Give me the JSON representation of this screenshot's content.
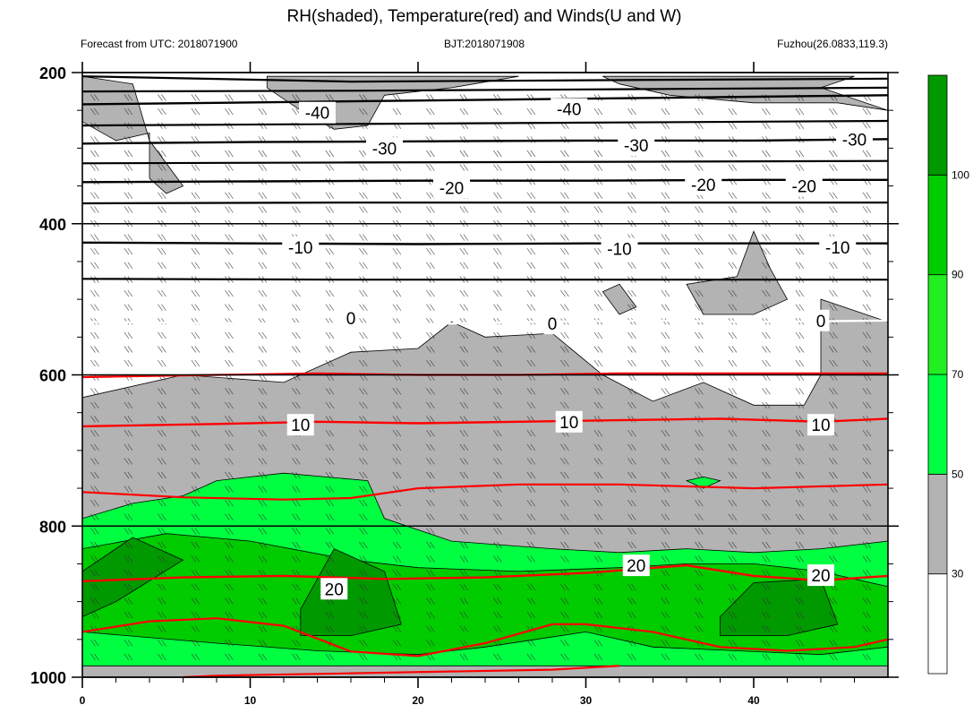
{
  "chart_data": {
    "type": "heatmap",
    "title": "RH(shaded), Temperature(red) and Winds(U and W)",
    "subtitle_left": "Forecast from UTC: 2018071900",
    "subtitle_center": "BJT:2018071908",
    "subtitle_right": "Fuzhou(26.0833,119.3)",
    "xlabel": "",
    "ylabel": "",
    "xlim": [
      0,
      48
    ],
    "ylim": [
      1000,
      200
    ],
    "x_ticks": [
      0,
      10,
      20,
      30,
      40
    ],
    "y_ticks": [
      200,
      400,
      600,
      800,
      1000
    ],
    "colorbar": {
      "levels": [
        30,
        50,
        70,
        90,
        100
      ],
      "colors": [
        "#ffffff",
        "#b3b3b3",
        "#00ff40",
        "#22ee22",
        "#00cc00",
        "#009900"
      ]
    },
    "rh_regions": [
      {
        "level": 50,
        "color": "#b3b3b3",
        "points": [
          [
            0,
            630
          ],
          [
            6,
            600
          ],
          [
            12,
            610
          ],
          [
            16,
            570
          ],
          [
            20,
            565
          ],
          [
            22,
            530
          ],
          [
            24,
            550
          ],
          [
            28,
            545
          ],
          [
            31,
            600
          ],
          [
            34,
            635
          ],
          [
            37,
            610
          ],
          [
            40,
            640
          ],
          [
            43,
            640
          ],
          [
            44,
            600
          ],
          [
            44,
            500
          ],
          [
            48,
            530
          ],
          [
            48,
            1000
          ],
          [
            0,
            1000
          ]
        ]
      },
      {
        "level": 50,
        "color": "#b3b3b3",
        "points": [
          [
            0,
            205
          ],
          [
            3,
            215
          ],
          [
            4,
            290
          ],
          [
            6,
            350
          ],
          [
            5,
            360
          ],
          [
            4,
            340
          ],
          [
            4,
            280
          ],
          [
            2,
            290
          ],
          [
            0,
            265
          ]
        ]
      },
      {
        "level": 50,
        "color": "#b3b3b3",
        "points": [
          [
            11,
            205
          ],
          [
            26,
            205
          ],
          [
            22,
            220
          ],
          [
            18,
            230
          ],
          [
            17,
            270
          ],
          [
            15,
            275
          ],
          [
            13,
            250
          ],
          [
            11,
            220
          ]
        ]
      },
      {
        "level": 50,
        "color": "#b3b3b3",
        "points": [
          [
            31,
            205
          ],
          [
            46,
            205
          ],
          [
            44,
            220
          ],
          [
            48,
            250
          ],
          [
            45,
            240
          ],
          [
            40,
            240
          ],
          [
            35,
            230
          ],
          [
            32,
            215
          ]
        ]
      },
      {
        "level": 50,
        "color": "#b3b3b3",
        "points": [
          [
            37,
            520
          ],
          [
            36,
            480
          ],
          [
            39,
            470
          ],
          [
            40,
            410
          ],
          [
            41,
            460
          ],
          [
            42,
            500
          ],
          [
            40,
            520
          ]
        ]
      },
      {
        "level": 50,
        "color": "#b3b3b3",
        "points": [
          [
            31,
            490
          ],
          [
            32,
            480
          ],
          [
            33,
            510
          ],
          [
            32,
            520
          ]
        ]
      },
      {
        "level": 70,
        "color": "#00ff40",
        "points": [
          [
            0,
            790
          ],
          [
            3,
            770
          ],
          [
            6,
            760
          ],
          [
            8,
            740
          ],
          [
            12,
            730
          ],
          [
            17,
            740
          ],
          [
            18,
            790
          ],
          [
            22,
            820
          ],
          [
            28,
            830
          ],
          [
            32,
            835
          ],
          [
            36,
            830
          ],
          [
            40,
            835
          ],
          [
            44,
            830
          ],
          [
            48,
            820
          ],
          [
            48,
            985
          ],
          [
            0,
            985
          ]
        ]
      },
      {
        "level": 70,
        "color": "#00ff40",
        "points": [
          [
            37,
            735
          ],
          [
            38,
            740
          ],
          [
            37,
            750
          ],
          [
            36,
            740
          ]
        ]
      },
      {
        "level": 90,
        "color": "#00cc00",
        "points": [
          [
            0,
            830
          ],
          [
            5,
            810
          ],
          [
            10,
            820
          ],
          [
            16,
            845
          ],
          [
            20,
            855
          ],
          [
            26,
            860
          ],
          [
            32,
            855
          ],
          [
            36,
            850
          ],
          [
            40,
            850
          ],
          [
            44,
            860
          ],
          [
            48,
            880
          ],
          [
            48,
            960
          ],
          [
            44,
            970
          ],
          [
            34,
            960
          ],
          [
            30,
            940
          ],
          [
            24,
            960
          ],
          [
            20,
            970
          ],
          [
            14,
            965
          ],
          [
            8,
            955
          ],
          [
            0,
            940
          ]
        ]
      },
      {
        "level": 100,
        "color": "#009900",
        "points": [
          [
            0,
            860
          ],
          [
            3,
            815
          ],
          [
            6,
            845
          ],
          [
            2,
            900
          ],
          [
            0,
            920
          ]
        ]
      },
      {
        "level": 100,
        "color": "#009900",
        "points": [
          [
            13,
            910
          ],
          [
            15,
            830
          ],
          [
            18,
            860
          ],
          [
            19,
            930
          ],
          [
            16,
            945
          ],
          [
            13,
            945
          ]
        ]
      },
      {
        "level": 100,
        "color": "#009900",
        "points": [
          [
            38,
            920
          ],
          [
            40,
            875
          ],
          [
            44,
            870
          ],
          [
            45,
            930
          ],
          [
            42,
            945
          ],
          [
            38,
            945
          ]
        ]
      }
    ],
    "temperature_contours": [
      {
        "value": -40,
        "color": "#000000",
        "points": [
          [
            0,
            242
          ],
          [
            8,
            240
          ],
          [
            16,
            238
          ],
          [
            24,
            236
          ],
          [
            32,
            234
          ],
          [
            40,
            232
          ],
          [
            48,
            230
          ]
        ]
      },
      {
        "value": -30,
        "color": "#000000",
        "points": [
          [
            0,
            294
          ],
          [
            10,
            292
          ],
          [
            20,
            291
          ],
          [
            30,
            290
          ],
          [
            40,
            290
          ],
          [
            48,
            288
          ]
        ]
      },
      {
        "value": -20,
        "color": "#000000",
        "points": [
          [
            0,
            345
          ],
          [
            10,
            344
          ],
          [
            20,
            343
          ],
          [
            30,
            343
          ],
          [
            40,
            342
          ],
          [
            48,
            342
          ]
        ]
      },
      {
        "value": -10,
        "color": "#000000",
        "points": [
          [
            0,
            425
          ],
          [
            10,
            426
          ],
          [
            20,
            427
          ],
          [
            30,
            426
          ],
          [
            40,
            426
          ],
          [
            48,
            426
          ]
        ]
      },
      {
        "value": 0,
        "color": "#ffffff",
        "points": [
          [
            0,
            530
          ],
          [
            10,
            532
          ],
          [
            20,
            533
          ],
          [
            26,
            530
          ],
          [
            34,
            528
          ],
          [
            40,
            530
          ],
          [
            48,
            528
          ]
        ]
      },
      {
        "value": 10,
        "color": "#ff0000",
        "points": [
          [
            0,
            668
          ],
          [
            8,
            665
          ],
          [
            14,
            662
          ],
          [
            20,
            664
          ],
          [
            26,
            662
          ],
          [
            32,
            660
          ],
          [
            38,
            658
          ],
          [
            44,
            662
          ],
          [
            48,
            658
          ]
        ]
      },
      {
        "value": 20,
        "color": "#ff0000",
        "points": [
          [
            0,
            873
          ],
          [
            6,
            868
          ],
          [
            12,
            866
          ],
          [
            18,
            870
          ],
          [
            24,
            868
          ],
          [
            30,
            862
          ],
          [
            36,
            852
          ],
          [
            40,
            866
          ],
          [
            44,
            872
          ],
          [
            48,
            866
          ]
        ]
      }
    ],
    "temperature_extra_lines": [
      {
        "color": "#000000",
        "points": [
          [
            0,
            205
          ],
          [
            16,
            212
          ],
          [
            32,
            210
          ],
          [
            48,
            208
          ]
        ]
      },
      {
        "color": "#000000",
        "points": [
          [
            0,
            225
          ],
          [
            16,
            224
          ],
          [
            32,
            222
          ],
          [
            48,
            220
          ]
        ]
      },
      {
        "color": "#000000",
        "points": [
          [
            0,
            270
          ],
          [
            16,
            268
          ],
          [
            32,
            266
          ],
          [
            48,
            264
          ]
        ]
      },
      {
        "color": "#000000",
        "points": [
          [
            0,
            320
          ],
          [
            16,
            319
          ],
          [
            32,
            318
          ],
          [
            48,
            317
          ]
        ]
      },
      {
        "color": "#000000",
        "points": [
          [
            0,
            373
          ],
          [
            16,
            372
          ],
          [
            32,
            372
          ],
          [
            48,
            372
          ]
        ]
      },
      {
        "color": "#000000",
        "points": [
          [
            0,
            473
          ],
          [
            16,
            474
          ],
          [
            32,
            474
          ],
          [
            48,
            474
          ]
        ]
      },
      {
        "color": "#ff0000",
        "points": [
          [
            0,
            603
          ],
          [
            8,
            600
          ],
          [
            14,
            598
          ],
          [
            20,
            600
          ],
          [
            26,
            600
          ],
          [
            32,
            598
          ],
          [
            40,
            598
          ],
          [
            48,
            598
          ]
        ]
      },
      {
        "color": "#ff0000",
        "points": [
          [
            0,
            755
          ],
          [
            6,
            762
          ],
          [
            12,
            765
          ],
          [
            16,
            763
          ],
          [
            20,
            750
          ],
          [
            26,
            745
          ],
          [
            32,
            745
          ],
          [
            40,
            750
          ],
          [
            48,
            745
          ]
        ]
      },
      {
        "color": "#ff0000",
        "points": [
          [
            0,
            940
          ],
          [
            4,
            926
          ],
          [
            8,
            922
          ],
          [
            12,
            932
          ],
          [
            16,
            966
          ],
          [
            20,
            972
          ],
          [
            24,
            955
          ],
          [
            28,
            930
          ],
          [
            30,
            930
          ],
          [
            34,
            940
          ],
          [
            38,
            960
          ],
          [
            42,
            965
          ],
          [
            46,
            960
          ],
          [
            48,
            950
          ]
        ]
      },
      {
        "color": "#ff0000",
        "points": [
          [
            6,
            1000
          ],
          [
            8,
            998
          ],
          [
            28,
            990
          ],
          [
            32,
            985
          ]
        ]
      }
    ],
    "contour_labels": [
      {
        "text": "-40",
        "x": 14,
        "y": 253
      },
      {
        "text": "-40",
        "x": 29,
        "y": 248
      },
      {
        "text": "-30",
        "x": 18,
        "y": 300
      },
      {
        "text": "-30",
        "x": 33,
        "y": 296
      },
      {
        "text": "-30",
        "x": 46,
        "y": 288
      },
      {
        "text": "-20",
        "x": 22,
        "y": 352
      },
      {
        "text": "-20",
        "x": 37,
        "y": 348
      },
      {
        "text": "-20",
        "x": 43,
        "y": 350
      },
      {
        "text": "-10",
        "x": 13,
        "y": 431
      },
      {
        "text": "-10",
        "x": 32,
        "y": 433
      },
      {
        "text": "-10",
        "x": 45,
        "y": 431
      },
      {
        "text": "0",
        "x": 16,
        "y": 525
      },
      {
        "text": "0",
        "x": 28,
        "y": 532
      },
      {
        "text": "0",
        "x": 44,
        "y": 528
      },
      {
        "text": "10",
        "x": 13,
        "y": 666
      },
      {
        "text": "10",
        "x": 29,
        "y": 662
      },
      {
        "text": "10",
        "x": 44,
        "y": 666
      },
      {
        "text": "20",
        "x": 15,
        "y": 883
      },
      {
        "text": "20",
        "x": 33,
        "y": 852
      },
      {
        "text": "20",
        "x": 44,
        "y": 865
      }
    ]
  }
}
